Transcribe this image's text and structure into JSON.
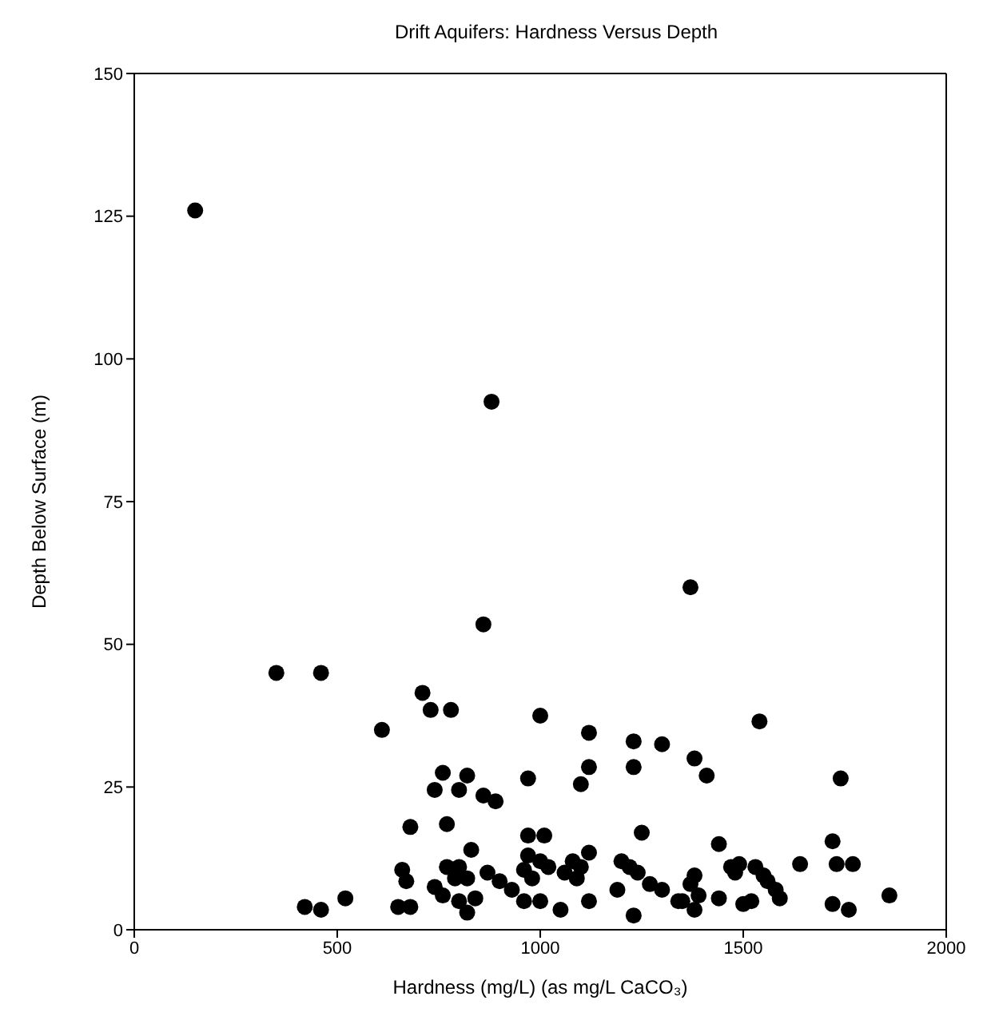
{
  "chart_data": {
    "type": "scatter",
    "title": "Drift Aquifers: Hardness Versus Depth",
    "xlabel": "Hardness (mg/L) (as mg/L CaCO₃)",
    "ylabel": "Depth Below Surface (m)",
    "x": [
      150,
      880,
      1370,
      860,
      350,
      460,
      710,
      730,
      780,
      610,
      1000,
      1540,
      1120,
      1230,
      1300,
      1380,
      1410,
      1120,
      1230,
      1100,
      760,
      820,
      970,
      1740,
      800,
      740,
      860,
      890,
      770,
      680,
      1010,
      970,
      1250,
      1440,
      1720,
      830,
      1120,
      660,
      670,
      420,
      460,
      520,
      650,
      680,
      740,
      770,
      800,
      790,
      820,
      760,
      800,
      840,
      820,
      870,
      900,
      930,
      960,
      970,
      1000,
      960,
      1000,
      980,
      1020,
      1060,
      1080,
      1090,
      1100,
      1120,
      1050,
      1190,
      1220,
      1240,
      1230,
      1270,
      1300,
      1350,
      1370,
      1380,
      1390,
      1440,
      1470,
      1490,
      1480,
      1500,
      1520,
      1530,
      1550,
      1560,
      1580,
      1590,
      1640,
      1720,
      1730,
      1770,
      1760,
      1860,
      1380,
      1340,
      1200
    ],
    "series": [
      {
        "color": "#000000",
        "values": [
          126,
          92.5,
          60,
          53.5,
          45,
          45,
          41.5,
          38.5,
          38.5,
          35,
          37.5,
          36.5,
          34.5,
          33,
          32.5,
          30,
          27,
          28.5,
          28.5,
          25.5,
          27.5,
          27,
          26.5,
          26.5,
          24.5,
          24.5,
          23.5,
          22.5,
          18.5,
          18,
          16.5,
          16.5,
          17,
          15,
          15.5,
          14,
          13.5,
          10.5,
          8.5,
          4,
          3.5,
          5.5,
          4,
          4,
          7.5,
          11,
          11,
          9,
          9,
          6,
          5,
          5.5,
          3,
          10,
          8.5,
          7,
          10.5,
          13,
          12,
          5,
          5,
          9,
          11,
          10,
          12,
          9,
          11,
          5,
          3.5,
          7,
          11,
          10,
          2.5,
          8,
          7,
          5,
          8,
          3.5,
          6,
          5.5,
          11,
          11.5,
          10,
          4.5,
          5,
          11,
          9.5,
          8.5,
          7,
          5.5,
          11.5,
          4.5,
          11.5,
          11.5,
          3.5,
          6,
          9.5,
          5,
          12
        ]
      }
    ],
    "xlim": [
      0,
      2000
    ],
    "xticks": [
      0,
      500,
      1000,
      1500,
      2000
    ],
    "ylim": [
      0,
      150
    ],
    "yticks": [
      0,
      25,
      50,
      75,
      100,
      125,
      150
    ],
    "marker": "circle",
    "legend": false
  }
}
